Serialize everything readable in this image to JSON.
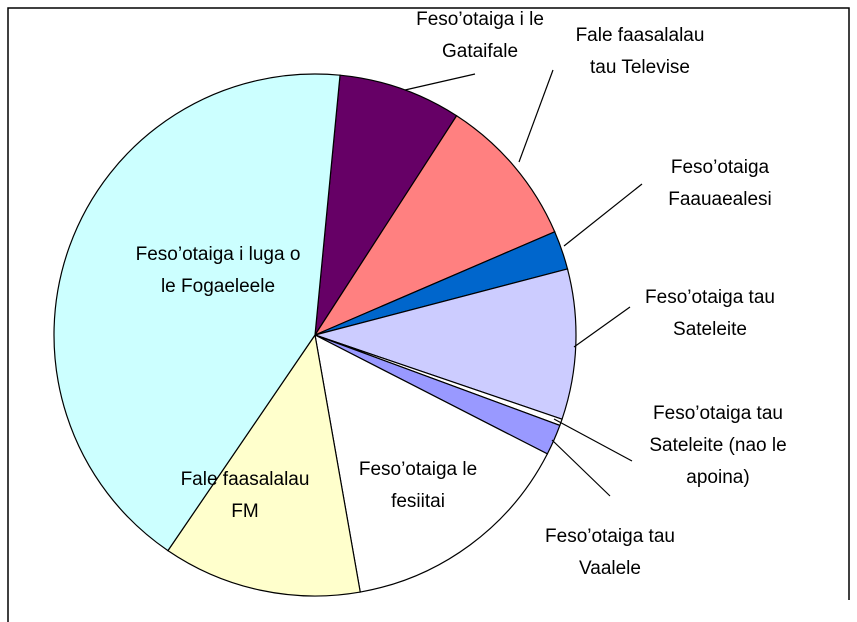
{
  "chart_data": {
    "type": "pie",
    "categories": [
      "Feso’otaiga i le Gataifale",
      "Fale faasalalau tau Televise",
      "Feso’otaiga Faauaealesi",
      "Feso’otaiga tau Sateleite",
      "Feso’otaiga tau Sateleite (nao le apoina)",
      "Feso’otaiga tau Vaalele",
      "Feso’otaiga le fesiitai",
      "Fale faasalalau FM",
      "Feso’otaiga i luga o le Fogaeleele"
    ],
    "values": [
      7.6,
      9.4,
      2.4,
      9.3,
      0.4,
      1.9,
      14.7,
      12.3,
      42.0
    ],
    "colors": [
      "#660066",
      "#ff8080",
      "#0066cc",
      "#ccccff",
      "#ffffff",
      "#9999ff",
      "#ffffff",
      "#ffffcc",
      "#ccffff"
    ]
  }
}
